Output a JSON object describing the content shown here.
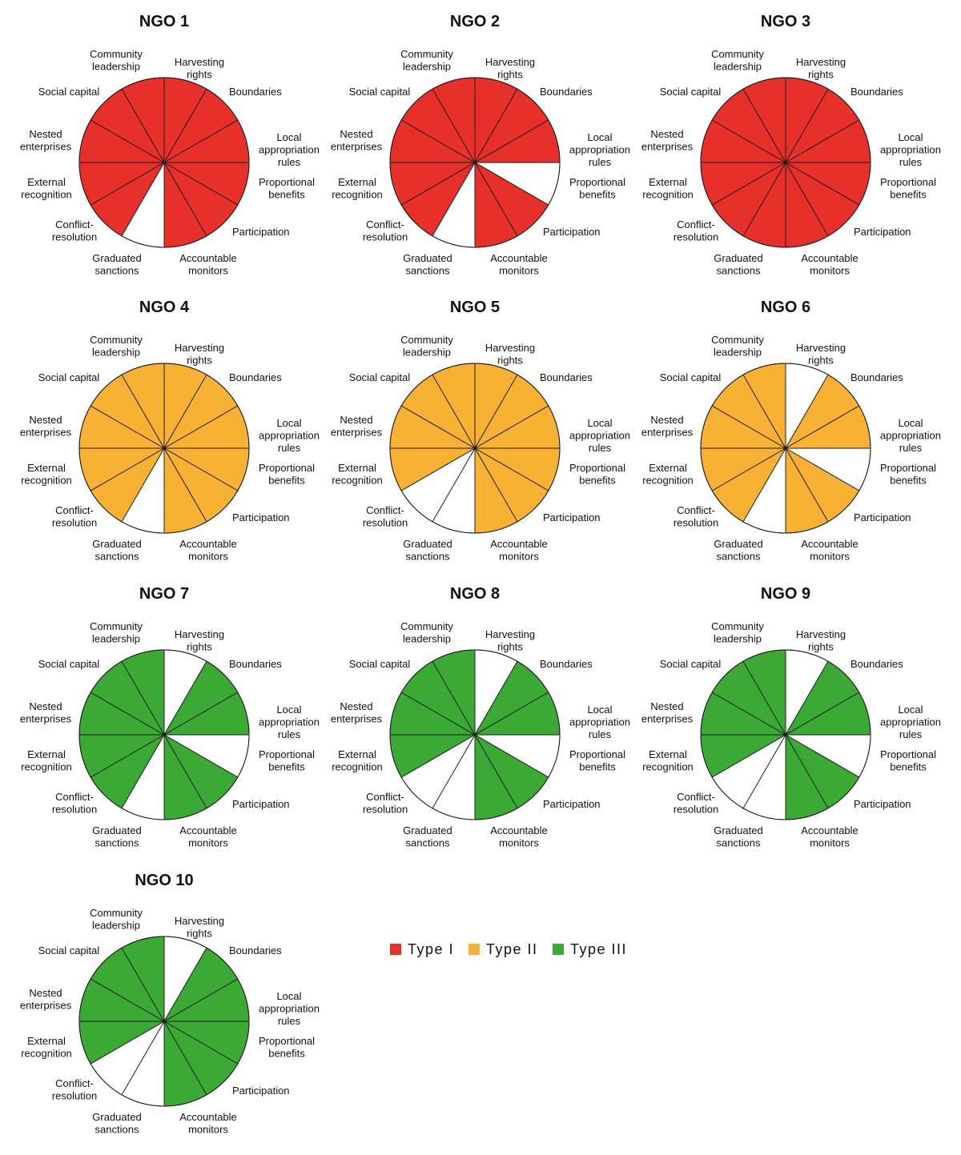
{
  "chart_data": {
    "type": "segmented_circle",
    "segments": [
      "Harvesting rights",
      "Boundaries",
      "Local appropriation rules",
      "Proportional benefits",
      "Participation",
      "Accountable monitors",
      "Graduated sanctions",
      "Conflict-resolution",
      "External recognition",
      "Nested enterprises",
      "Social capital",
      "Community leadership"
    ],
    "segment_label_lines": [
      [
        "Harvesting",
        "rights"
      ],
      [
        "Boundaries"
      ],
      [
        "Local",
        "appropriation",
        "rules"
      ],
      [
        "Proportional",
        "benefits"
      ],
      [
        "Participation"
      ],
      [
        "Accountable",
        "monitors"
      ],
      [
        "Graduated",
        "sanctions"
      ],
      [
        "Conflict-",
        "resolution"
      ],
      [
        "External",
        "recognition"
      ],
      [
        "Nested",
        "enterprises"
      ],
      [
        "Social capital"
      ],
      [
        "Community",
        "leadership"
      ]
    ],
    "legend": [
      {
        "label": "Type I",
        "color": "#e8302a"
      },
      {
        "label": "Type II",
        "color": "#f8b133"
      },
      {
        "label": "Type III",
        "color": "#3aaa35"
      }
    ],
    "ngos": [
      {
        "name": "NGO 1",
        "type": "Type I",
        "filled": [
          1,
          1,
          1,
          1,
          1,
          1,
          0,
          1,
          1,
          1,
          1,
          1
        ]
      },
      {
        "name": "NGO 2",
        "type": "Type I",
        "filled": [
          1,
          1,
          1,
          0,
          1,
          1,
          0,
          1,
          1,
          1,
          1,
          1
        ]
      },
      {
        "name": "NGO 3",
        "type": "Type I",
        "filled": [
          1,
          1,
          1,
          1,
          1,
          1,
          1,
          1,
          1,
          1,
          1,
          1
        ]
      },
      {
        "name": "NGO 4",
        "type": "Type II",
        "filled": [
          1,
          1,
          1,
          1,
          1,
          1,
          0,
          1,
          1,
          1,
          1,
          1
        ]
      },
      {
        "name": "NGO 5",
        "type": "Type II",
        "filled": [
          1,
          1,
          1,
          1,
          1,
          1,
          0,
          0,
          1,
          1,
          1,
          1
        ]
      },
      {
        "name": "NGO 6",
        "type": "Type II",
        "filled": [
          0,
          1,
          1,
          0,
          1,
          1,
          0,
          1,
          1,
          1,
          1,
          1
        ]
      },
      {
        "name": "NGO 7",
        "type": "Type III",
        "filled": [
          0,
          1,
          1,
          0,
          1,
          1,
          0,
          1,
          1,
          1,
          1,
          1
        ]
      },
      {
        "name": "NGO 8",
        "type": "Type III",
        "filled": [
          0,
          1,
          1,
          0,
          1,
          1,
          0,
          0,
          1,
          1,
          1,
          1
        ]
      },
      {
        "name": "NGO 9",
        "type": "Type III",
        "filled": [
          0,
          1,
          1,
          0,
          1,
          1,
          0,
          0,
          1,
          1,
          1,
          1
        ]
      },
      {
        "name": "NGO 10",
        "type": "Type III",
        "filled": [
          0,
          1,
          1,
          1,
          1,
          1,
          0,
          0,
          1,
          1,
          1,
          1
        ]
      }
    ]
  }
}
